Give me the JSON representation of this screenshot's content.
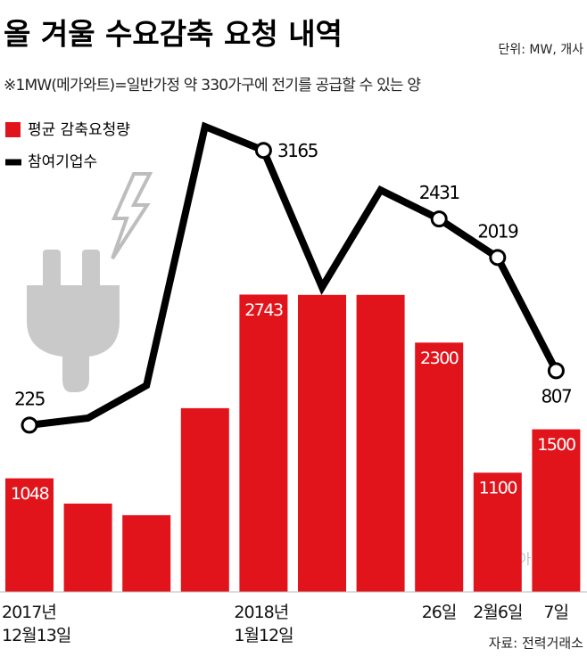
{
  "chart_data": {
    "type": "bar-line",
    "title": "올 겨울 수요감축 요청 내역",
    "unit": "단위: MW, 개사",
    "note": "※1MW(메가와트)=일반가정 약 330가구에 전기를 공급할 수 있는 양",
    "source": "자료: 전력거래소",
    "watermark": "아시아경제",
    "categories": [
      "2017년\n12월13일",
      null,
      null,
      null,
      "2018년\n1월12일",
      null,
      null,
      "26일",
      "2월6일",
      "7일"
    ],
    "series": [
      {
        "name": "평균 감축요청량",
        "color": "#e2141b",
        "type": "bar",
        "values": [
          1048,
          815,
          708,
          1695,
          2743,
          2740,
          2740,
          2300,
          1100,
          1500
        ],
        "value_labels": [
          "1048",
          null,
          null,
          null,
          "2743",
          null,
          null,
          "2300",
          "1100",
          "1500"
        ]
      },
      {
        "name": "참여기업수",
        "color": "#000000",
        "type": "line",
        "axis": "y2",
        "values": [
          225,
          300,
          650,
          3420,
          3165,
          1700,
          2740,
          2431,
          2019,
          807
        ],
        "value_labels": [
          "225",
          null,
          null,
          null,
          "3165",
          null,
          null,
          "2431",
          "2019",
          "807"
        ]
      }
    ],
    "ylim": [
      0,
      5000
    ],
    "y2lim": [
      -1560,
      4240
    ],
    "legend": "top-left"
  }
}
